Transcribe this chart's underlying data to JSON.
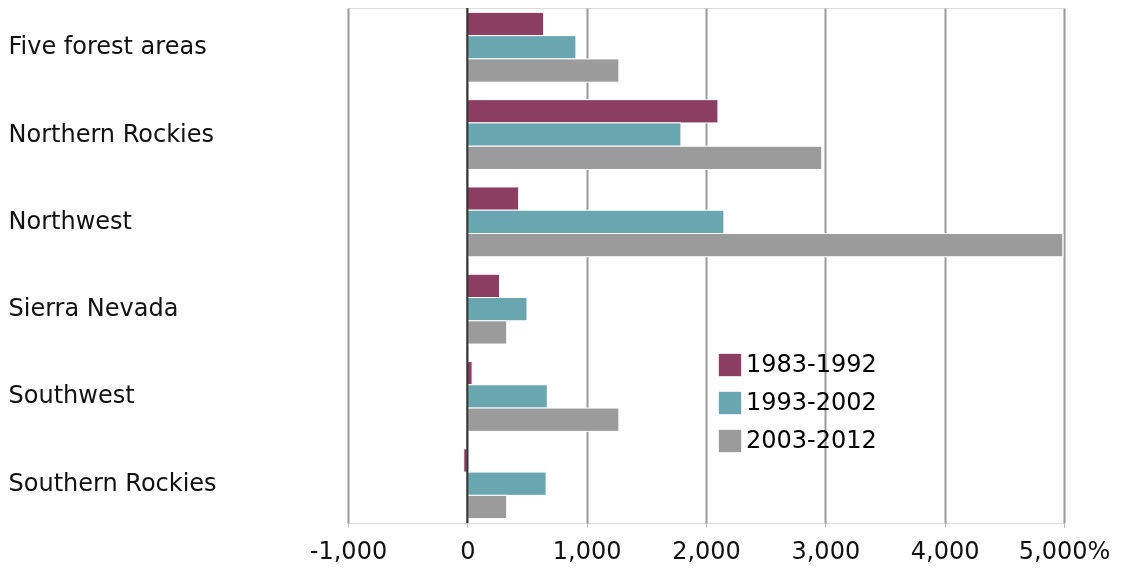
{
  "chart_data": {
    "type": "bar",
    "orientation": "horizontal",
    "categories": [
      "Five forest areas",
      "Northern Rockies",
      "Northwest",
      "Sierra Nevada",
      "Southwest",
      "Southern Rockies"
    ],
    "series": [
      {
        "name": "1983-1992",
        "color": "#8b3e62",
        "values": [
          640,
          2100,
          430,
          270,
          40,
          -30
        ]
      },
      {
        "name": "1993-2002",
        "color": "#6aa6b0",
        "values": [
          910,
          1790,
          2150,
          500,
          670,
          660
        ]
      },
      {
        "name": "2003-2012",
        "color": "#9b9b9b",
        "values": [
          1270,
          2970,
          4990,
          330,
          1270,
          330
        ]
      }
    ],
    "xlim": [
      -1000,
      5000
    ],
    "xticks": [
      {
        "value": -1000,
        "label": "-1,000"
      },
      0,
      {
        "value": 1000,
        "label": "1,000"
      },
      {
        "value": 2000,
        "label": "2,000"
      },
      {
        "value": 3000,
        "label": "3,000"
      },
      {
        "value": 4000,
        "label": "4,000"
      },
      {
        "value": 5000,
        "label": "5,000%"
      }
    ],
    "grid": "x",
    "legend": "bottom right"
  }
}
